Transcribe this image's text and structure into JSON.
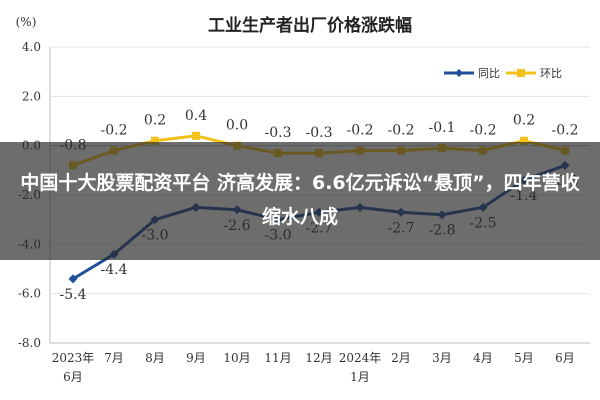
{
  "chart_data": {
    "type": "line",
    "title": "工业生产者出厂价格涨跌幅",
    "ylabel": "(%)",
    "ylim": [
      -8.0,
      4.0
    ],
    "yticks": [
      "4.0",
      "2.0",
      "0.0",
      "-2.0",
      "-4.0",
      "-6.0",
      "-8.0"
    ],
    "grid": true,
    "legend_position": "top-right",
    "categories": [
      [
        "2023年",
        "6月"
      ],
      [
        "7月"
      ],
      [
        "8月"
      ],
      [
        "9月"
      ],
      [
        "10月"
      ],
      [
        "11月"
      ],
      [
        "12月"
      ],
      [
        "2024年",
        "1月"
      ],
      [
        "2月"
      ],
      [
        "3月"
      ],
      [
        "4月"
      ],
      [
        "5月"
      ],
      [
        "6月"
      ]
    ],
    "series": [
      {
        "name": "同比",
        "color": "#1f4e9a",
        "values": [
          -5.4,
          -4.4,
          -3.0,
          -2.5,
          -2.6,
          -3.0,
          -2.7,
          -2.5,
          -2.7,
          -2.8,
          -2.5,
          -1.4,
          -0.8
        ],
        "labels": [
          "-5.4",
          "-4.4",
          "-3.0",
          "",
          "-2.6",
          "-3.0",
          "-2.7",
          "",
          "-2.7",
          "-2.8",
          "-2.5",
          "-1.4",
          "-0.8"
        ]
      },
      {
        "name": "环比",
        "color": "#f2c21b",
        "values": [
          -0.8,
          -0.2,
          0.2,
          0.4,
          0.0,
          -0.3,
          -0.3,
          -0.2,
          -0.2,
          -0.1,
          -0.2,
          0.2,
          -0.2
        ],
        "labels": [
          "-0.8",
          "-0.2",
          "0.2",
          "0.4",
          "0.0",
          "-0.3",
          "-0.3",
          "-0.2",
          "-0.2",
          "-0.1",
          "-0.2",
          "0.2",
          "-0.2"
        ]
      }
    ]
  },
  "overlay": {
    "headline": "中国十大股票配资平台 济高发展：6.6亿元诉讼“悬顶”，四年营收缩水八成",
    "background_color": "#282828"
  }
}
